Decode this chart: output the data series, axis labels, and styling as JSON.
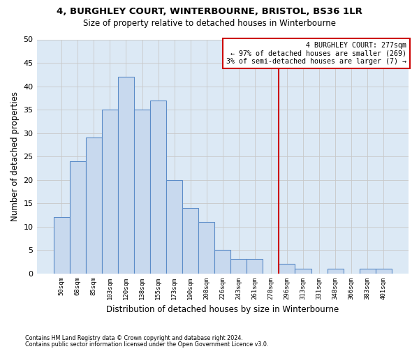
{
  "title_line1": "4, BURGHLEY COURT, WINTERBOURNE, BRISTOL, BS36 1LR",
  "title_line2": "Size of property relative to detached houses in Winterbourne",
  "xlabel": "Distribution of detached houses by size in Winterbourne",
  "ylabel": "Number of detached properties",
  "footnote1": "Contains HM Land Registry data © Crown copyright and database right 2024.",
  "footnote2": "Contains public sector information licensed under the Open Government Licence v3.0.",
  "bin_labels": [
    "50sqm",
    "68sqm",
    "85sqm",
    "103sqm",
    "120sqm",
    "138sqm",
    "155sqm",
    "173sqm",
    "190sqm",
    "208sqm",
    "226sqm",
    "243sqm",
    "261sqm",
    "278sqm",
    "296sqm",
    "313sqm",
    "331sqm",
    "348sqm",
    "366sqm",
    "383sqm",
    "401sqm"
  ],
  "bar_values": [
    12,
    24,
    29,
    35,
    42,
    35,
    37,
    20,
    14,
    11,
    5,
    3,
    3,
    0,
    2,
    1,
    0,
    1,
    0,
    1,
    1
  ],
  "bar_color": "#c8d9ee",
  "bar_edge_color": "#5b8cc8",
  "ylim": [
    0,
    50
  ],
  "yticks": [
    0,
    5,
    10,
    15,
    20,
    25,
    30,
    35,
    40,
    45,
    50
  ],
  "vline_index": 13,
  "vline_color": "#cc0000",
  "annotation_line1": "4 BURGHLEY COURT: 277sqm",
  "annotation_line2": "← 97% of detached houses are smaller (269)",
  "annotation_line3": "3% of semi-detached houses are larger (7) →",
  "background_color": "#ffffff",
  "grid_color": "#c8c8c8",
  "fig_width": 6.0,
  "fig_height": 5.0,
  "fig_dpi": 100
}
